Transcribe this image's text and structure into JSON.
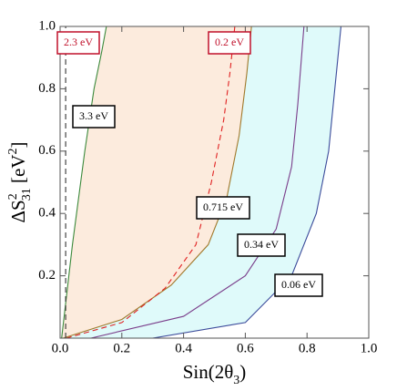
{
  "chart_data": {
    "type": "line",
    "xlabel": [
      {
        "text": "Sin(2θ"
      },
      {
        "text": "3",
        "shift": "sub"
      },
      {
        "text": ")"
      }
    ],
    "ylabel": [
      {
        "text": "ΔS"
      },
      {
        "text": "2",
        "shift": "super"
      },
      {
        "text": "31",
        "shift": "sub"
      },
      {
        "text": " [eV"
      },
      {
        "text": "2",
        "shift": "super"
      },
      {
        "text": "]"
      }
    ],
    "xlim": [
      0,
      1
    ],
    "ylim": [
      0,
      1
    ],
    "xticks": [
      {
        "value": 0,
        "label": "0.0"
      },
      0.2,
      0.4,
      0.6,
      0.8,
      {
        "value": 1,
        "label": "1.0"
      }
    ],
    "yticks": [
      0.2,
      0.4,
      0.6,
      0.8,
      {
        "value": 1,
        "label": "1.0"
      }
    ],
    "series": [
      {
        "name": "3.3 eV",
        "color": "#3c8a3c",
        "dashed": false,
        "label_color": "#000000",
        "x": [
          0.005,
          0.04,
          0.08,
          0.11,
          0.135,
          0.15
        ],
        "y": [
          0,
          0.3,
          0.6,
          0.8,
          0.92,
          1.0
        ]
      },
      {
        "name": "0.715 eV",
        "color": "#a0782a",
        "dashed": false,
        "label_color": "#000000",
        "x": [
          0.01,
          0.2,
          0.36,
          0.48,
          0.54,
          0.58,
          0.605,
          0.62
        ],
        "y": [
          0,
          0.06,
          0.17,
          0.3,
          0.45,
          0.65,
          0.85,
          1.0
        ]
      },
      {
        "name": "0.2 eV",
        "color": "#e02020",
        "dashed": true,
        "label_color": "#c0102a",
        "x": [
          0.02,
          0.2,
          0.34,
          0.44,
          0.49,
          0.53,
          0.55,
          0.566
        ],
        "y": [
          0,
          0.05,
          0.16,
          0.3,
          0.5,
          0.7,
          0.85,
          1.0
        ]
      },
      {
        "name": "0.34 eV",
        "color": "#7a3d8a",
        "dashed": false,
        "label_color": "#000000",
        "x": [
          0.1,
          0.4,
          0.6,
          0.7,
          0.75,
          0.77,
          0.79
        ],
        "y": [
          0,
          0.07,
          0.2,
          0.35,
          0.55,
          0.75,
          1.0
        ]
      },
      {
        "name": "0.06 eV",
        "color": "#3a4a9a",
        "dashed": false,
        "label_color": "#000000",
        "x": [
          0.3,
          0.6,
          0.75,
          0.83,
          0.87,
          0.89,
          0.91
        ],
        "y": [
          0,
          0.05,
          0.2,
          0.4,
          0.6,
          0.8,
          1.0
        ]
      },
      {
        "name": "2.3 eV",
        "color": "#333333",
        "dashed": true,
        "label_color": "#c0102a",
        "x": [
          0.018,
          0.018,
          0.018
        ],
        "y": [
          0,
          0.5,
          1.0
        ]
      }
    ],
    "fills": [
      {
        "series": [
          0,
          1
        ],
        "color": "#fcebdd"
      },
      {
        "series": [
          1,
          4
        ],
        "color": "#dffafa"
      }
    ]
  }
}
